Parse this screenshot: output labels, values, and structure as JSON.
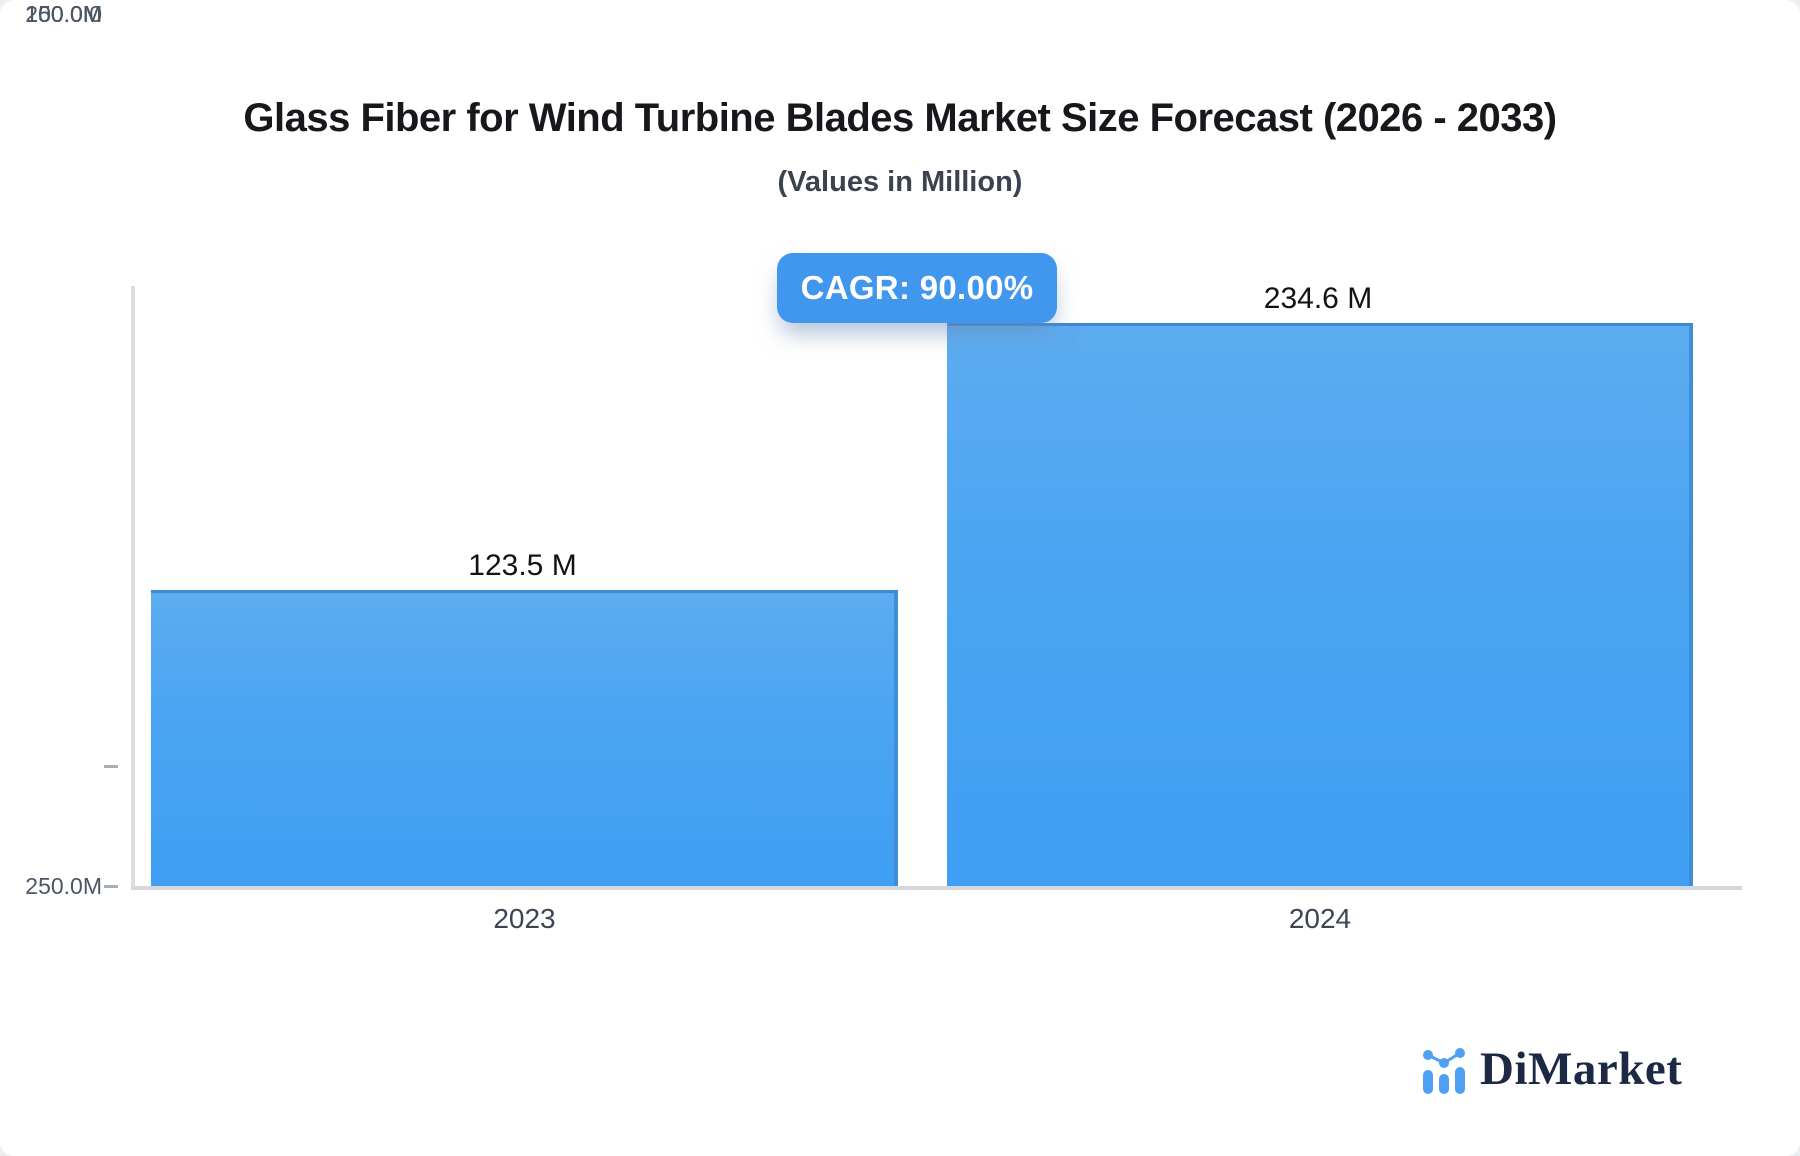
{
  "header": {
    "title": "Glass Fiber for Wind Turbine Blades Market Size Forecast (2026 - 2033)",
    "subtitle": "(Values in Million)"
  },
  "badge": {
    "label": "CAGR: 90.00%",
    "color": "#4196ee"
  },
  "chart_data": {
    "type": "bar",
    "title": "Glass Fiber for Wind Turbine Blades Market Size Forecast (2026 - 2033)",
    "subtitle": "(Values in Million)",
    "unit": "Million",
    "categories": [
      "2023",
      "2024"
    ],
    "values": [
      123.5,
      234.6
    ],
    "value_labels": [
      "123.5 M",
      "234.6 M"
    ],
    "cagr_percent": "90.00%",
    "ylim": [
      0,
      250
    ],
    "y_ticks": [
      "250.0M",
      "200.0M",
      "150.0M",
      "100.0M",
      "50.0M",
      "0"
    ],
    "y_tick_values": [
      250,
      200,
      150,
      100,
      50,
      0
    ],
    "grid": false,
    "legend": "none",
    "bar_color_top": "#5dacf0",
    "bar_color_bottom": "#3f9ff4",
    "bar_border_color": "#3d87d3",
    "axis_color": "#d4d7db"
  },
  "branding": {
    "logo_text": "DiMarket",
    "logo_icon": "mini-bar-chart-icon",
    "logo_text_color": "#1c2844",
    "logo_icon_color": "#4da0f2"
  }
}
